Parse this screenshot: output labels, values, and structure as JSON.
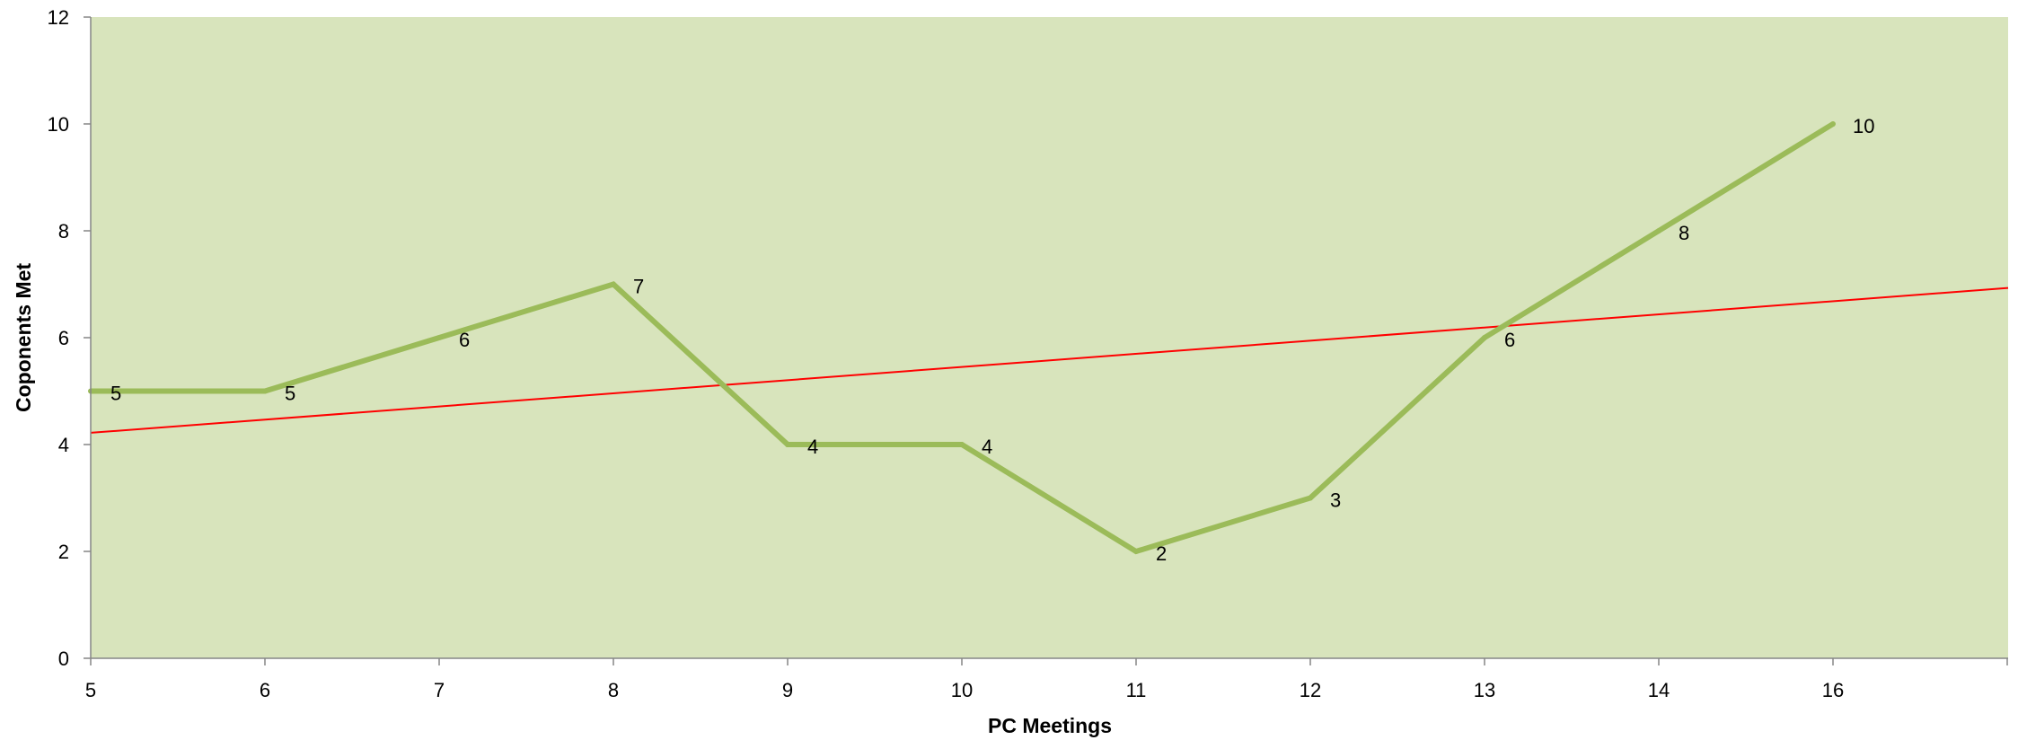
{
  "chart_data": {
    "type": "line",
    "xlabel": "PC Meetings",
    "ylabel": "Coponents Met",
    "ylim": [
      0,
      12
    ],
    "y_ticks": [
      "0",
      "2",
      "4",
      "6",
      "8",
      "10",
      "12"
    ],
    "categories": [
      "5",
      "6",
      "7",
      "8",
      "9",
      "10",
      "11",
      "12",
      "13",
      "14",
      "16"
    ],
    "series": [
      {
        "values": [
          5,
          5,
          6,
          7,
          4,
          4,
          2,
          3,
          6,
          8,
          10
        ],
        "data_labels": [
          "5",
          "5",
          "6",
          "7",
          "4",
          "4",
          "2",
          "3",
          "6",
          "8",
          "10"
        ],
        "color": "#9bbb59"
      }
    ],
    "trendline": {
      "type": "linear",
      "color": "#ff0000",
      "start_value": 4.22,
      "end_value": 6.93
    },
    "plot_background": "#d8e4bc",
    "grid": false,
    "legend": "none"
  }
}
